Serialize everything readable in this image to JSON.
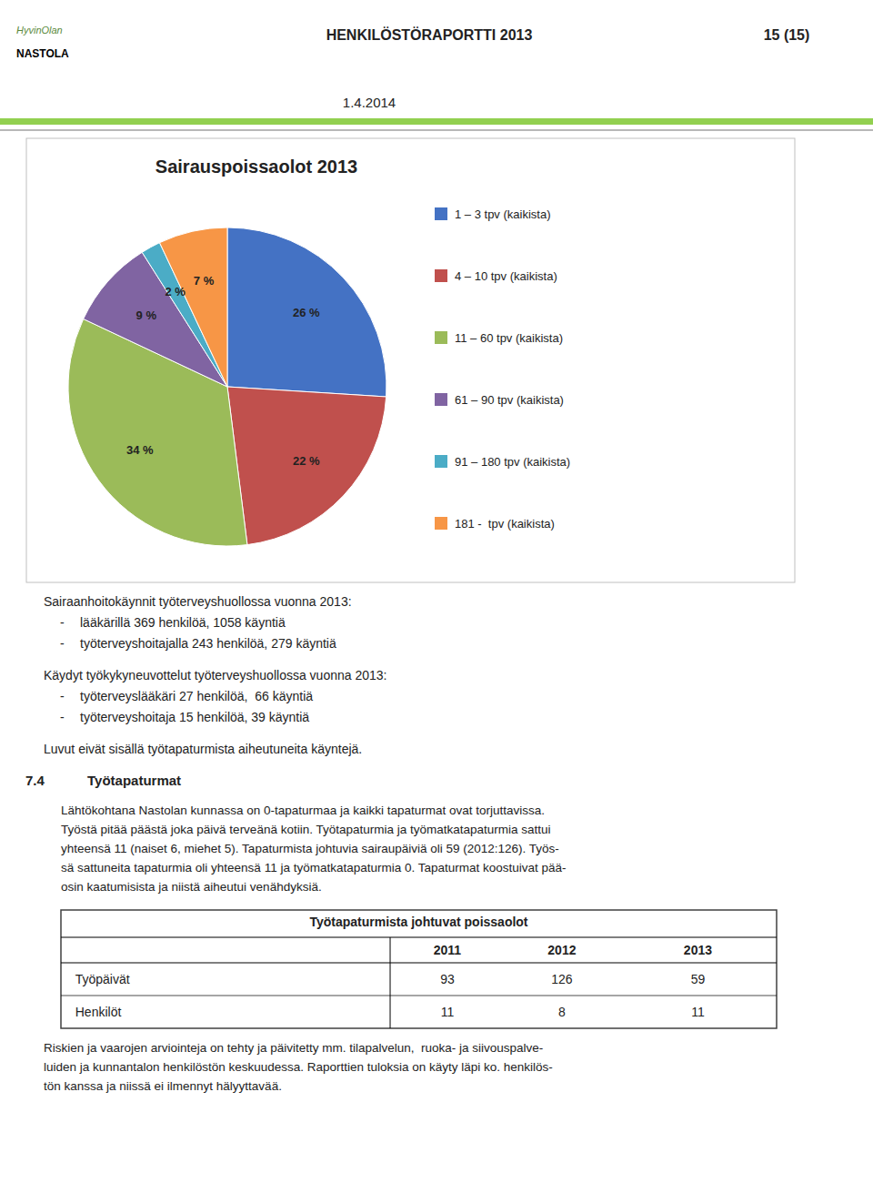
{
  "chart_data": {
    "type": "pie",
    "title": "Sairauspoissaolot 2013",
    "categories": [
      "1 – 3 tpv (kaikista)",
      "4 – 10 tpv (kaikista)",
      "11 – 60 tpv (kaikista)",
      "61 – 90 tpv (kaikista)",
      "91 – 180 tpv (kaikista)",
      "181 -  tpv (kaikista)"
    ],
    "values": [
      26,
      22,
      34,
      9,
      2,
      7
    ],
    "value_labels": [
      "26 %",
      "22 %",
      "34 %",
      "9 %",
      "2 %",
      "7 %"
    ],
    "colors": [
      "#4472C4",
      "#C0504D",
      "#9BBB59",
      "#8064A2",
      "#4BACC6",
      "#F79646"
    ],
    "data_labels": true,
    "legend": "right"
  },
  "page": {
    "logo": [
      {
        "text": "HyvinOlan",
        "color": "#5a8a3c"
      },
      {
        "text": "NASTOLA",
        "color": "#000000"
      }
    ],
    "header_title": "HENKILÖSTÖRAPORTTI 2013",
    "header_page": "15 (15)",
    "header_date": "1.4.2014",
    "header_line_colors": [
      "#92D050",
      "#A0A0A0"
    ],
    "box_color": "#FFFFFF",
    "box_border_color": "#BFBFBF",
    "bullet_marker": "-",
    "text_blocks": [
      {
        "heading": "Sairaanhoitokäynnit työterveyshuollossa vuonna 2013:",
        "bullets": [
          "lääkärillä 369 henkilöä, 1058 käyntiä",
          "työterveyshoitajalla 243 henkilöä, 279 käyntiä"
        ]
      },
      {
        "heading": "Käydyt työkykyneuvottelut työterveyshuollossa vuonna 2013:",
        "bullets": [
          "työterveyslääkäri 27 henkilöä,  66 käyntiä",
          "työterveyshoitaja 15 henkilöä, 39 käyntiä"
        ]
      },
      {
        "heading": "Luvut eivät sisällä työtapaturmista aiheutuneita käyntejä.",
        "bullets": []
      }
    ],
    "section": {
      "number": "7.4",
      "name": "Työtapaturmat"
    },
    "body_lines": [
      "Lähtökohtana Nastolan kunnassa on 0-tapaturmaa ja kaikki tapaturmat ovat torjuttavissa.",
      "Työstä pitää päästä joka päivä terveänä kotiin. Työtapaturmia ja työmatkatapaturmia sattui",
      "yhteensä 11 (naiset 6, miehet 5). Tapaturmista johtuvia sairaupäiviä oli 59 (2012:126). Työs-",
      "sä sattuneita tapaturmia oli yhteensä 11 ja työmatkatapaturmia 0. Tapaturmat koostuivat pää-",
      "osin kaatumisista ja niistä aiheutui venähdyksiä."
    ],
    "table": {
      "title": "Työtapaturmista johtuvat poissaolot",
      "columns": [
        "2011",
        "2012",
        "2013"
      ],
      "rows": [
        {
          "label": "Työpäivät",
          "values": [
            93,
            126,
            59
          ]
        },
        {
          "label": "Henkilöt",
          "values": [
            11,
            8,
            11
          ]
        }
      ]
    },
    "footer_lines": [
      "Riskien ja vaarojen arviointeja on tehty ja päivitetty mm. tilapalvelun,  ruoka- ja siivouspalve-",
      "luiden ja kunnantalon henkilöstön keskuudessa. Raporttien tuloksia on käyty läpi ko. henkilös-",
      "tön kanssa ja niissä ei ilmennyt hälyyttavää."
    ]
  }
}
